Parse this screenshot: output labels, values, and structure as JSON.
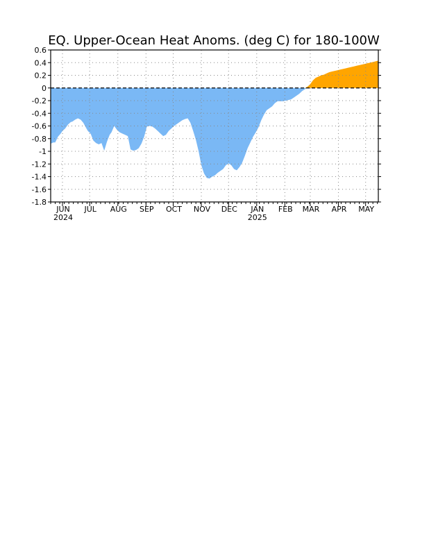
{
  "chart_data": {
    "type": "area",
    "title": "EQ. Upper-Ocean Heat Anoms. (deg C) for 180-100W",
    "xlabel": "",
    "ylabel": "",
    "ylim": [
      -1.8,
      0.6
    ],
    "yticks": [
      "0.6",
      "0.4",
      "0.2",
      "0",
      "-0.2",
      "-0.4",
      "-0.6",
      "-0.8",
      "-1",
      "-1.2",
      "-1.4",
      "-1.6",
      "-1.8"
    ],
    "month_ticks": [
      {
        "label": "JUN",
        "year": "2024"
      },
      {
        "label": "JUL",
        "year": ""
      },
      {
        "label": "AUG",
        "year": ""
      },
      {
        "label": "SEP",
        "year": ""
      },
      {
        "label": "OCT",
        "year": ""
      },
      {
        "label": "NOV",
        "year": ""
      },
      {
        "label": "DEC",
        "year": ""
      },
      {
        "label": "JAN",
        "year": "2025"
      },
      {
        "label": "FEB",
        "year": ""
      },
      {
        "label": "MAR",
        "year": ""
      },
      {
        "label": "APR",
        "year": ""
      },
      {
        "label": "MAY",
        "year": ""
      }
    ],
    "grid": true,
    "positive_color": "#ffa500",
    "negative_color": "#7ab8f5",
    "series": [
      {
        "x": [
          "2024-05-19",
          "2024-05-22",
          "2024-05-24",
          "2024-05-27",
          "2024-05-30",
          "2024-06-01",
          "2024-06-04",
          "2024-06-07",
          "2024-06-10",
          "2024-06-12",
          "2024-06-15",
          "2024-06-18",
          "2024-06-21",
          "2024-06-24",
          "2024-06-27",
          "2024-06-29",
          "2024-07-02",
          "2024-07-05",
          "2024-07-08",
          "2024-07-11",
          "2024-07-14",
          "2024-07-17",
          "2024-07-20",
          "2024-07-23",
          "2024-07-25",
          "2024-07-28",
          "2024-07-31",
          "2024-08-03",
          "2024-08-06",
          "2024-08-09",
          "2024-08-12",
          "2024-08-15",
          "2024-08-18",
          "2024-08-21",
          "2024-08-24",
          "2024-08-27",
          "2024-08-30",
          "2024-09-02",
          "2024-09-05",
          "2024-09-08",
          "2024-09-11",
          "2024-09-14",
          "2024-09-17",
          "2024-09-20",
          "2024-09-23",
          "2024-09-26",
          "2024-09-29",
          "2024-10-02",
          "2024-10-05",
          "2024-10-08",
          "2024-10-11",
          "2024-10-14",
          "2024-10-17",
          "2024-10-20",
          "2024-10-23",
          "2024-10-26",
          "2024-10-29",
          "2024-11-01",
          "2024-11-04",
          "2024-11-07",
          "2024-11-10",
          "2024-11-13",
          "2024-11-16",
          "2024-11-19",
          "2024-11-22",
          "2024-11-25",
          "2024-11-28",
          "2024-12-01",
          "2024-12-04",
          "2024-12-07",
          "2024-12-10",
          "2024-12-13",
          "2024-12-16",
          "2024-12-19",
          "2024-12-22",
          "2024-12-25",
          "2024-12-28",
          "2024-12-31",
          "2025-01-03",
          "2025-01-06",
          "2025-01-09",
          "2025-01-12",
          "2025-01-15",
          "2025-01-18",
          "2025-01-21",
          "2025-01-24",
          "2025-01-27",
          "2025-01-30",
          "2025-02-02",
          "2025-02-05",
          "2025-02-08",
          "2025-02-11",
          "2025-02-14",
          "2025-02-17",
          "2025-02-20",
          "2025-02-23",
          "2025-02-26",
          "2025-03-01",
          "2025-03-04",
          "2025-03-07",
          "2025-03-10",
          "2025-03-13",
          "2025-03-16",
          "2025-03-19",
          "2025-03-22",
          "2025-03-25",
          "2025-03-28",
          "2025-03-31",
          "2025-04-03",
          "2025-04-06",
          "2025-04-09",
          "2025-04-12",
          "2025-04-15",
          "2025-04-18",
          "2025-04-21",
          "2025-04-24",
          "2025-04-27",
          "2025-04-30",
          "2025-05-03",
          "2025-05-06",
          "2025-05-09",
          "2025-05-12",
          "2025-05-15"
        ],
        "values": [
          -0.88,
          -0.86,
          -0.86,
          -0.77,
          -0.72,
          -0.68,
          -0.64,
          -0.58,
          -0.54,
          -0.53,
          -0.5,
          -0.48,
          -0.5,
          -0.55,
          -0.63,
          -0.68,
          -0.72,
          -0.83,
          -0.87,
          -0.89,
          -0.87,
          -0.99,
          -0.85,
          -0.74,
          -0.7,
          -0.6,
          -0.66,
          -0.7,
          -0.72,
          -0.74,
          -0.76,
          -0.97,
          -0.99,
          -0.98,
          -0.95,
          -0.88,
          -0.77,
          -0.61,
          -0.6,
          -0.61,
          -0.64,
          -0.68,
          -0.72,
          -0.76,
          -0.74,
          -0.68,
          -0.64,
          -0.6,
          -0.57,
          -0.54,
          -0.51,
          -0.49,
          -0.48,
          -0.55,
          -0.68,
          -0.82,
          -1.0,
          -1.22,
          -1.35,
          -1.42,
          -1.43,
          -1.4,
          -1.38,
          -1.34,
          -1.31,
          -1.28,
          -1.22,
          -1.19,
          -1.22,
          -1.28,
          -1.3,
          -1.25,
          -1.18,
          -1.07,
          -0.95,
          -0.86,
          -0.77,
          -0.7,
          -0.62,
          -0.51,
          -0.42,
          -0.35,
          -0.32,
          -0.29,
          -0.24,
          -0.21,
          -0.21,
          -0.21,
          -0.2,
          -0.19,
          -0.18,
          -0.15,
          -0.12,
          -0.09,
          -0.05,
          -0.02,
          0.02,
          0.06,
          0.12,
          0.16,
          0.18,
          0.2,
          0.21,
          0.23,
          0.25,
          0.26,
          0.27,
          0.28,
          0.29,
          0.3,
          0.31,
          0.32,
          0.33,
          0.34,
          0.35,
          0.36,
          0.37,
          0.38,
          0.39,
          0.4,
          0.41,
          0.42,
          0.43
        ]
      }
    ]
  }
}
